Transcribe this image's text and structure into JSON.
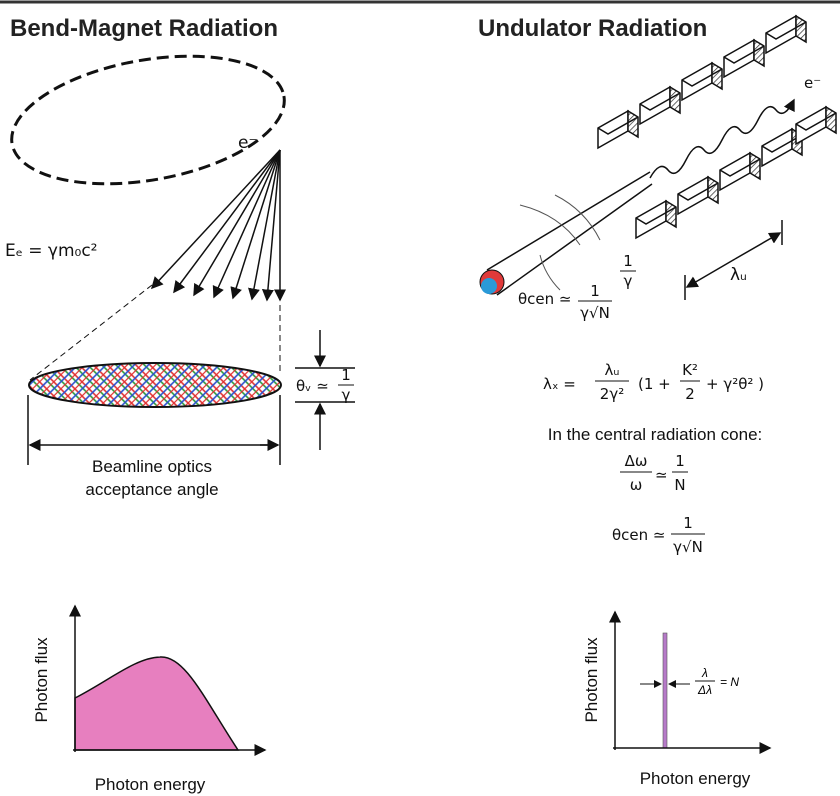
{
  "header": {
    "left_title": "Bend-Magnet Radiation",
    "right_title": "Undulator Radiation"
  },
  "bend_magnet": {
    "electron": "e⁻",
    "energy": "Eₑ = γm₀c²",
    "divergence": {
      "symbol": "θᵥ ≃",
      "numerator": "1",
      "denominator": "γ"
    },
    "acceptance": [
      "Beamline optics",
      "acceptance angle"
    ],
    "plot": {
      "y_label": "Photon flux",
      "x_label": "Photon energy"
    }
  },
  "undulator": {
    "electron": "e⁻",
    "cone_angle": {
      "symbol": "θcen ≃",
      "numerator": "1",
      "denominator": "γ√N"
    },
    "opening": {
      "numerator": "1",
      "denominator": "γ"
    },
    "period": "λᵤ",
    "wavelength": {
      "symbol": "λₓ =",
      "numerator": "λᵤ",
      "denominator": "2γ²",
      "open": "(1 +",
      "k_numerator": "K²",
      "k_denominator": "2",
      "close": "+ γ²θ² )"
    },
    "cone_note": "In the central radiation cone:",
    "bandwidth": {
      "numerator": "Δω",
      "denominator": "ω",
      "relation": "≃",
      "rhs_numerator": "1",
      "rhs_denominator": "N"
    },
    "central_angle": {
      "symbol": "θcen ≃",
      "numerator": "1",
      "denominator": "γ√N"
    },
    "plot": {
      "y_label": "Photon flux",
      "x_label": "Photon energy",
      "resolution": {
        "numerator": "λ",
        "denominator": "Δλ",
        "rhs": "= N"
      }
    }
  }
}
